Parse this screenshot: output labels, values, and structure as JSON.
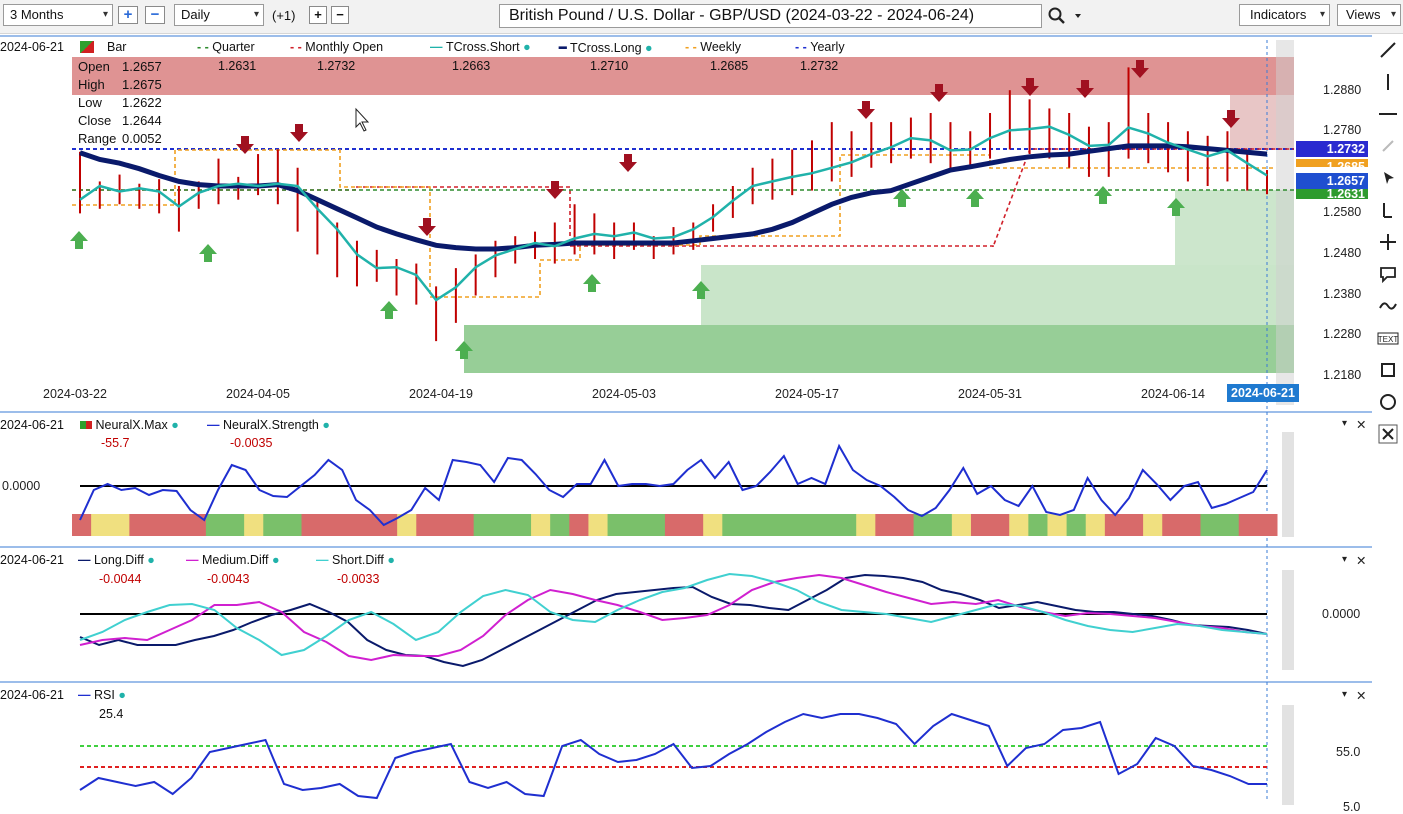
{
  "toolbar": {
    "period": "3 Months",
    "interval": "Daily",
    "offset": "(+1)",
    "title": "British Pound / U.S. Dollar - GBP/USD (2024-03-22 - 2024-06-24)",
    "indicators": "Indicators",
    "views": "Views",
    "chevron": "▾",
    "plus": "+",
    "minus": "−",
    "search_icon": "search-icon"
  },
  "main": {
    "date": "2024-06-21",
    "legend": [
      {
        "label": "Bar",
        "value": "",
        "color": "#c00000"
      },
      {
        "label": "Quarter",
        "value": "1.2631",
        "color": "#2e8b2e"
      },
      {
        "label": "Monthly Open",
        "value": "1.2732",
        "color": "#d0202a"
      },
      {
        "label": "TCross.Short",
        "value": "1.2663",
        "color": "#20b2aa"
      },
      {
        "label": "TCross.Long",
        "value": "1.2710",
        "color": "#0a1a6b"
      },
      {
        "label": "Weekly",
        "value": "1.2685",
        "color": "#f0a020"
      },
      {
        "label": "Yearly",
        "value": "1.2732",
        "color": "#1f2fd0"
      }
    ],
    "ohlc": [
      {
        "label": "Open",
        "value": "1.2657"
      },
      {
        "label": "High",
        "value": "1.2675"
      },
      {
        "label": "Low",
        "value": "1.2622"
      },
      {
        "label": "Close",
        "value": "1.2644"
      },
      {
        "label": "Range",
        "value": "0.0052"
      }
    ],
    "y_ticks": [
      "1.2880",
      "1.2780",
      "1.2580",
      "1.2480",
      "1.2380",
      "1.2280",
      "1.2180"
    ],
    "x_ticks": [
      "2024-03-22",
      "2024-04-05",
      "2024-04-19",
      "2024-05-03",
      "2024-05-17",
      "2024-05-31",
      "2024-06-14"
    ],
    "x_current": "2024-06-21",
    "price_tags": [
      {
        "value": "1.2732",
        "color": "#2a2ad0"
      },
      {
        "value": "1.2685",
        "color": "#f0a020"
      },
      {
        "value": "1.2657",
        "color": "#1f4fd0"
      },
      {
        "value": "1.2631",
        "color": "#2e9b2e"
      }
    ]
  },
  "neuralx": {
    "date": "2024-06-21",
    "max_label": "NeuralX.Max",
    "max_value": "-55.7",
    "strength_label": "NeuralX.Strength",
    "strength_value": "-0.0035",
    "zero": "0.0000"
  },
  "diff": {
    "date": "2024-06-21",
    "long_label": "Long.Diff",
    "long_value": "-0.0044",
    "medium_label": "Medium.Diff",
    "medium_value": "-0.0043",
    "short_label": "Short.Diff",
    "short_value": "-0.0033",
    "zero": "0.0000"
  },
  "rsi": {
    "date": "2024-06-21",
    "label": "RSI",
    "value": "25.4",
    "tick_high": "55.0",
    "tick_low": "5.0"
  },
  "pane_controls": {
    "collapse": "▾",
    "close": "✕"
  },
  "chart_data": {
    "type": "bar",
    "title": "British Pound / U.S. Dollar - GBP/USD (2024-03-22 - 2024-06-24)",
    "xlabel": "",
    "ylabel": "",
    "ylim": [
      1.216,
      1.296
    ],
    "x_ticks": [
      "2024-03-22",
      "2024-04-05",
      "2024-04-19",
      "2024-05-03",
      "2024-05-17",
      "2024-05-31",
      "2024-06-14",
      "2024-06-21"
    ],
    "series": [
      {
        "name": "TCross.Long",
        "color": "#0a1a6b",
        "values": [
          1.2713,
          1.2698,
          1.269,
          1.2678,
          1.2663,
          1.265,
          1.2643,
          1.264,
          1.264,
          1.264,
          1.2643,
          1.263,
          1.261,
          1.259,
          1.257,
          1.255,
          1.2535,
          1.2522,
          1.251,
          1.2505,
          1.2502,
          1.2502,
          1.2505,
          1.251,
          1.2512,
          1.2515,
          1.2515,
          1.2515,
          1.2515,
          1.2515,
          1.2515,
          1.252,
          1.2525,
          1.253,
          1.2535,
          1.2545,
          1.256,
          1.258,
          1.26,
          1.2615,
          1.2625,
          1.263,
          1.2645,
          1.266,
          1.2675,
          1.2682,
          1.269,
          1.2698,
          1.2704,
          1.2708,
          1.271,
          1.2716,
          1.2722,
          1.2728,
          1.2728,
          1.2728,
          1.2726,
          1.2722,
          1.2718,
          1.2714,
          1.271
        ]
      },
      {
        "name": "TCross.Short",
        "color": "#20b2aa",
        "values": [
          1.261,
          1.264,
          1.2628,
          1.2635,
          1.2628,
          1.2595,
          1.2625,
          1.264,
          1.2645,
          1.264,
          1.2645,
          1.264,
          1.259,
          1.2545,
          1.249,
          1.246,
          1.2462,
          1.2445,
          1.239,
          1.2418,
          1.2462,
          1.2488,
          1.2502,
          1.2515,
          1.2508,
          1.2525,
          1.2535,
          1.253,
          1.2538,
          1.2525,
          1.2528,
          1.2545,
          1.2572,
          1.2608,
          1.264,
          1.265,
          1.266,
          1.2668,
          1.268,
          1.2692,
          1.271,
          1.2725,
          1.2745,
          1.274,
          1.2718,
          1.272,
          1.2745,
          1.2762,
          1.2765,
          1.277,
          1.2752,
          1.2728,
          1.273,
          1.2768,
          1.2755,
          1.2735,
          1.272,
          1.2705,
          1.2718,
          1.269,
          1.2663
        ]
      },
      {
        "name": "Bar High",
        "color": "#c00000",
        "values": [
          1.2715,
          1.265,
          1.2665,
          1.2645,
          1.2655,
          1.264,
          1.265,
          1.27,
          1.266,
          1.271,
          1.272,
          1.268,
          1.261,
          1.256,
          1.252,
          1.25,
          1.248,
          1.247,
          1.242,
          1.246,
          1.249,
          1.252,
          1.253,
          1.254,
          1.256,
          1.26,
          1.258,
          1.256,
          1.256,
          1.253,
          1.255,
          1.256,
          1.26,
          1.264,
          1.268,
          1.27,
          1.272,
          1.274,
          1.278,
          1.276,
          1.278,
          1.278,
          1.279,
          1.28,
          1.278,
          1.276,
          1.28,
          1.285,
          1.283,
          1.281,
          1.28,
          1.277,
          1.278,
          1.29,
          1.28,
          1.278,
          1.276,
          1.275,
          1.276,
          1.272,
          1.2675
        ]
      },
      {
        "name": "Bar Low",
        "color": "#c00000",
        "values": [
          1.258,
          1.259,
          1.26,
          1.259,
          1.258,
          1.254,
          1.259,
          1.26,
          1.261,
          1.262,
          1.26,
          1.254,
          1.249,
          1.244,
          1.242,
          1.243,
          1.24,
          1.238,
          1.23,
          1.234,
          1.24,
          1.244,
          1.247,
          1.248,
          1.247,
          1.249,
          1.249,
          1.248,
          1.25,
          1.248,
          1.249,
          1.25,
          1.254,
          1.257,
          1.26,
          1.261,
          1.262,
          1.263,
          1.265,
          1.266,
          1.268,
          1.269,
          1.27,
          1.269,
          1.267,
          1.268,
          1.27,
          1.272,
          1.271,
          1.27,
          1.268,
          1.266,
          1.266,
          1.27,
          1.269,
          1.267,
          1.265,
          1.264,
          1.265,
          1.263,
          1.2622
        ]
      }
    ],
    "levels": [
      {
        "name": "Yearly",
        "value": 1.2732
      },
      {
        "name": "Monthly Open",
        "value": 1.2732
      },
      {
        "name": "Weekly",
        "value": 1.2685
      },
      {
        "name": "Quarter",
        "value": 1.2631
      }
    ]
  }
}
